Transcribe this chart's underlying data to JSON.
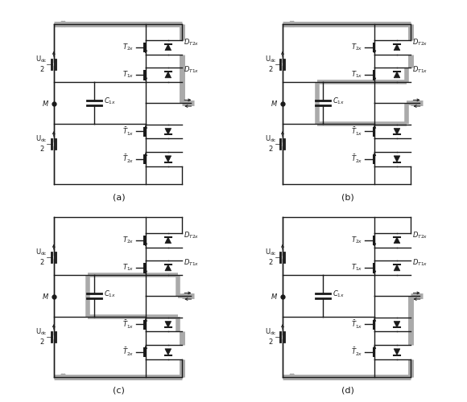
{
  "bg_color": "#ffffff",
  "lc": "#1a1a1a",
  "gray": "#aaaaaa",
  "dark_gray": "#888888",
  "lw": 1.0,
  "pw": 5.0,
  "fs": 6.0,
  "pfs": 8.0,
  "panels": [
    "(a)",
    "(b)",
    "(c)",
    "(d)"
  ]
}
